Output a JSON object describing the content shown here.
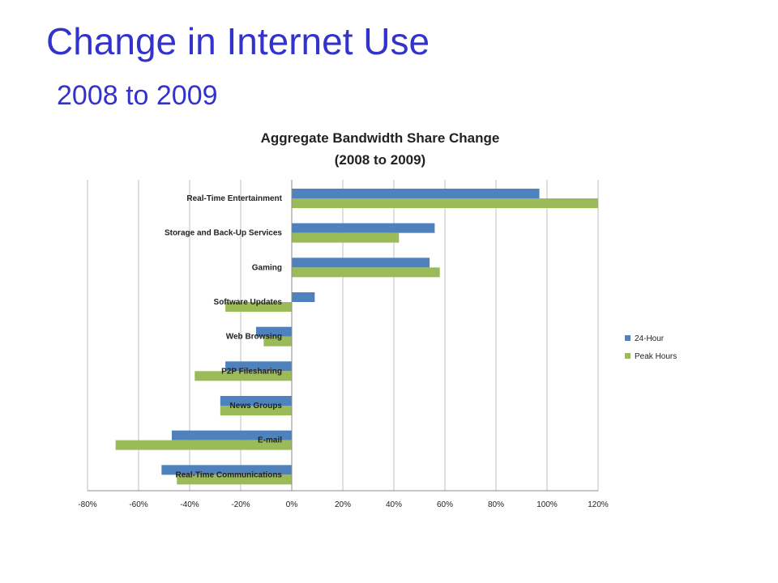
{
  "slide": {
    "title": "Change in Internet Use",
    "subtitle": "2008 to 2009"
  },
  "chart_data": {
    "type": "bar",
    "orientation": "horizontal",
    "title": "Aggregate Bandwidth Share Change",
    "subtitle": "(2008 to 2009)",
    "categories": [
      "Real-Time Entertainment",
      "Storage and Back-Up Services",
      "Gaming",
      "Software Updates",
      "Web Browsing",
      "P2P Filesharing",
      "News Groups",
      "E-mail",
      "Real-Time Communications"
    ],
    "series": [
      {
        "name": "24-Hour",
        "color": "#4f81bd",
        "values": [
          97,
          56,
          54,
          9,
          -14,
          -26,
          -28,
          -47,
          -51
        ]
      },
      {
        "name": "Peak Hours",
        "color": "#9bbb59",
        "values": [
          120,
          42,
          58,
          -26,
          -11,
          -38,
          -28,
          -69,
          -45
        ]
      }
    ],
    "x_ticks": [
      "-80%",
      "-60%",
      "-40%",
      "-20%",
      "0%",
      "20%",
      "40%",
      "60%",
      "80%",
      "100%",
      "120%"
    ],
    "xlim": [
      -80,
      120
    ],
    "unit": "%",
    "grid": true,
    "legend_position": "right"
  }
}
